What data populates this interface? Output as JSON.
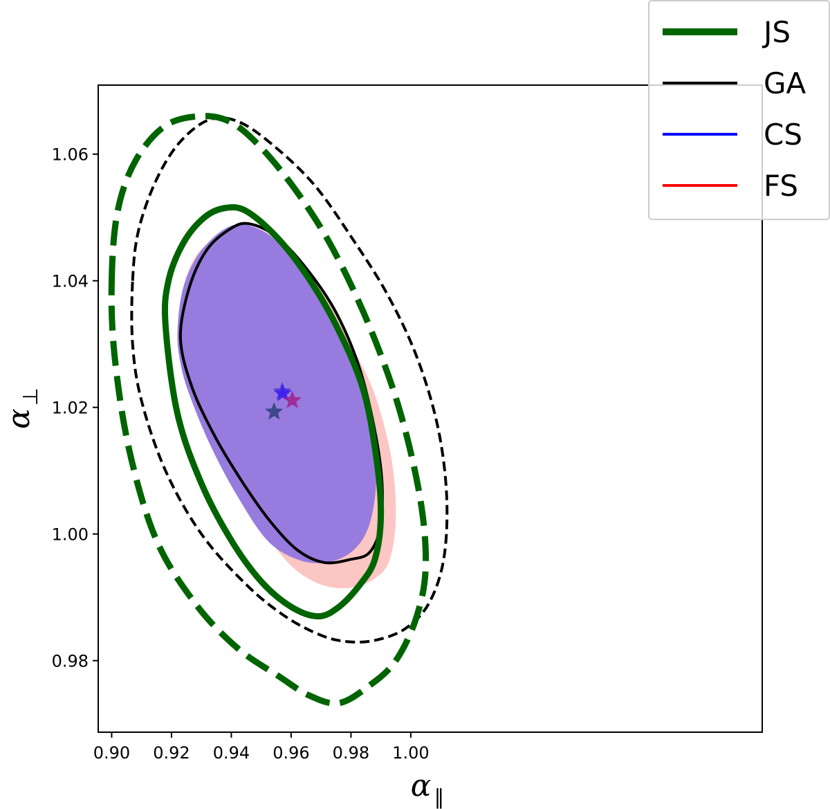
{
  "chart_data": {
    "type": "contour",
    "title": "",
    "xlabel": "α",
    "xlabel_sub": "∥",
    "ylabel": "α",
    "ylabel_sub": "⊥",
    "xlim": [
      0.8955,
      1.1175
    ],
    "ylim": [
      0.9687,
      1.0709
    ],
    "xticks": [
      0.9,
      0.92,
      0.94,
      0.96,
      0.98,
      1.0
    ],
    "xtick_labels": [
      "0.90",
      "0.92",
      "0.94",
      "0.96",
      "0.98",
      "1.00"
    ],
    "yticks": [
      0.98,
      1.0,
      1.02,
      1.04,
      1.06
    ],
    "ytick_labels": [
      "0.98",
      "1.00",
      "1.02",
      "1.04",
      "1.06"
    ],
    "legend_position": "top-right",
    "series": [
      {
        "name": "JS",
        "color": "#006400"
      },
      {
        "name": "GA",
        "color": "#000000"
      },
      {
        "name": "CS",
        "color": "#0000ff"
      },
      {
        "name": "FS",
        "color": "#ff0000"
      }
    ],
    "contours": [
      {
        "series": "FS",
        "level": "1-sigma",
        "style": "filled",
        "fill": "#fbc6c3",
        "points": [
          [
            0.9228,
            1.033
          ],
          [
            0.9245,
            1.04
          ],
          [
            0.93,
            1.045
          ],
          [
            0.94,
            1.0478
          ],
          [
            0.95,
            1.048
          ],
          [
            0.96,
            1.045
          ],
          [
            0.97,
            1.039
          ],
          [
            0.98,
            1.03
          ],
          [
            0.988,
            1.022
          ],
          [
            0.9935,
            1.012
          ],
          [
            0.995,
            1.003
          ],
          [
            0.993,
            0.996
          ],
          [
            0.988,
            0.993
          ],
          [
            0.98,
            0.9915
          ],
          [
            0.97,
            0.992
          ],
          [
            0.96,
            0.995
          ],
          [
            0.95,
            1.001
          ],
          [
            0.94,
            1.009
          ],
          [
            0.93,
            1.018
          ],
          [
            0.924,
            1.027
          ]
        ]
      },
      {
        "series": "CS",
        "level": "1-sigma",
        "style": "filled",
        "fill": "#977bde",
        "points": [
          [
            0.922,
            1.032
          ],
          [
            0.924,
            1.039
          ],
          [
            0.93,
            1.0448
          ],
          [
            0.94,
            1.0487
          ],
          [
            0.95,
            1.048
          ],
          [
            0.96,
            1.044
          ],
          [
            0.97,
            1.038
          ],
          [
            0.98,
            1.029
          ],
          [
            0.986,
            1.02
          ],
          [
            0.9885,
            1.01
          ],
          [
            0.9865,
            1.002
          ],
          [
            0.981,
            0.9975
          ],
          [
            0.972,
            0.9955
          ],
          [
            0.962,
            0.996
          ],
          [
            0.952,
            0.999
          ],
          [
            0.942,
            1.006
          ],
          [
            0.933,
            1.014
          ],
          [
            0.926,
            1.022
          ],
          [
            0.923,
            1.027
          ]
        ]
      },
      {
        "series": "GA",
        "level": "1-sigma",
        "style": "solid",
        "width": 4,
        "points": [
          [
            0.923,
            1.031
          ],
          [
            0.926,
            1.039
          ],
          [
            0.932,
            1.045
          ],
          [
            0.94,
            1.0483
          ],
          [
            0.946,
            1.049
          ],
          [
            0.955,
            1.047
          ],
          [
            0.965,
            1.042
          ],
          [
            0.975,
            1.035
          ],
          [
            0.983,
            1.026
          ],
          [
            0.9885,
            1.015
          ],
          [
            0.9905,
            1.007
          ],
          [
            0.9895,
            1.0005
          ],
          [
            0.986,
            0.997
          ],
          [
            0.98,
            0.996
          ],
          [
            0.971,
            0.9955
          ],
          [
            0.962,
            0.9975
          ],
          [
            0.953,
            1.002
          ],
          [
            0.944,
            1.008
          ],
          [
            0.935,
            1.015
          ],
          [
            0.927,
            1.023
          ]
        ]
      },
      {
        "series": "JS",
        "level": "1-sigma",
        "style": "solid",
        "width": 9,
        "points": [
          [
            0.918,
            1.033
          ],
          [
            0.919,
            1.04
          ],
          [
            0.924,
            1.046
          ],
          [
            0.931,
            1.05
          ],
          [
            0.938,
            1.0515
          ],
          [
            0.945,
            1.051
          ],
          [
            0.955,
            1.047
          ],
          [
            0.965,
            1.041
          ],
          [
            0.975,
            1.033
          ],
          [
            0.984,
            1.023
          ],
          [
            0.9885,
            1.012
          ],
          [
            0.99,
            1.003
          ],
          [
            0.988,
            0.996
          ],
          [
            0.983,
            0.992
          ],
          [
            0.976,
            0.9885
          ],
          [
            0.969,
            0.987
          ],
          [
            0.96,
            0.9885
          ],
          [
            0.95,
            0.9925
          ],
          [
            0.94,
            0.999
          ],
          [
            0.93,
            1.008
          ],
          [
            0.922,
            1.019
          ]
        ]
      },
      {
        "series": "GA",
        "level": "2-sigma",
        "style": "dashed",
        "width": 4,
        "points": [
          [
            0.907,
            1.04
          ],
          [
            0.909,
            1.048
          ],
          [
            0.915,
            1.056
          ],
          [
            0.923,
            1.062
          ],
          [
            0.933,
            1.0655
          ],
          [
            0.943,
            1.065
          ],
          [
            0.955,
            1.061
          ],
          [
            0.968,
            1.055
          ],
          [
            0.98,
            1.047
          ],
          [
            0.992,
            1.038
          ],
          [
            1.002,
            1.028
          ],
          [
            1.009,
            1.017
          ],
          [
            1.012,
            1.006
          ],
          [
            1.011,
            0.996
          ],
          [
            1.006,
            0.989
          ],
          [
            0.998,
            0.985
          ],
          [
            0.988,
            0.9832
          ],
          [
            0.979,
            0.983
          ],
          [
            0.97,
            0.984
          ],
          [
            0.958,
            0.987
          ],
          [
            0.945,
            0.992
          ],
          [
            0.93,
            1.0
          ],
          [
            0.918,
            1.01
          ],
          [
            0.91,
            1.021
          ],
          [
            0.907,
            1.03
          ]
        ]
      },
      {
        "series": "JS",
        "level": "2-sigma",
        "style": "dashed",
        "width": 9,
        "points": [
          [
            0.9,
            1.04
          ],
          [
            0.902,
            1.051
          ],
          [
            0.908,
            1.059
          ],
          [
            0.918,
            1.0645
          ],
          [
            0.93,
            1.066
          ],
          [
            0.94,
            1.065
          ],
          [
            0.95,
            1.061
          ],
          [
            0.962,
            1.054
          ],
          [
            0.974,
            1.045
          ],
          [
            0.986,
            1.033
          ],
          [
            0.996,
            1.02
          ],
          [
            1.003,
            1.006
          ],
          [
            1.005,
            0.995
          ],
          [
            1.002,
            0.987
          ],
          [
            0.995,
            0.98
          ],
          [
            0.986,
            0.976
          ],
          [
            0.976,
            0.9733
          ],
          [
            0.966,
            0.9745
          ],
          [
            0.956,
            0.9775
          ],
          [
            0.942,
            0.982
          ],
          [
            0.928,
            0.989
          ],
          [
            0.915,
            0.999
          ],
          [
            0.906,
            1.013
          ],
          [
            0.901,
            1.028
          ]
        ]
      }
    ],
    "markers": [
      {
        "series": "JS",
        "x": 0.9543,
        "y": 1.0193,
        "symbol": "star",
        "color": "#2c3f7a"
      },
      {
        "series": "GA",
        "x": 0.957,
        "y": 1.0225,
        "symbol": "star",
        "color": "#4c3fc8"
      },
      {
        "series": "CS",
        "x": 0.9572,
        "y": 1.0222,
        "symbol": "star",
        "color": "#3b1cf5"
      },
      {
        "series": "FS",
        "x": 0.9604,
        "y": 1.0211,
        "symbol": "star",
        "color": "#a0208f"
      }
    ]
  }
}
